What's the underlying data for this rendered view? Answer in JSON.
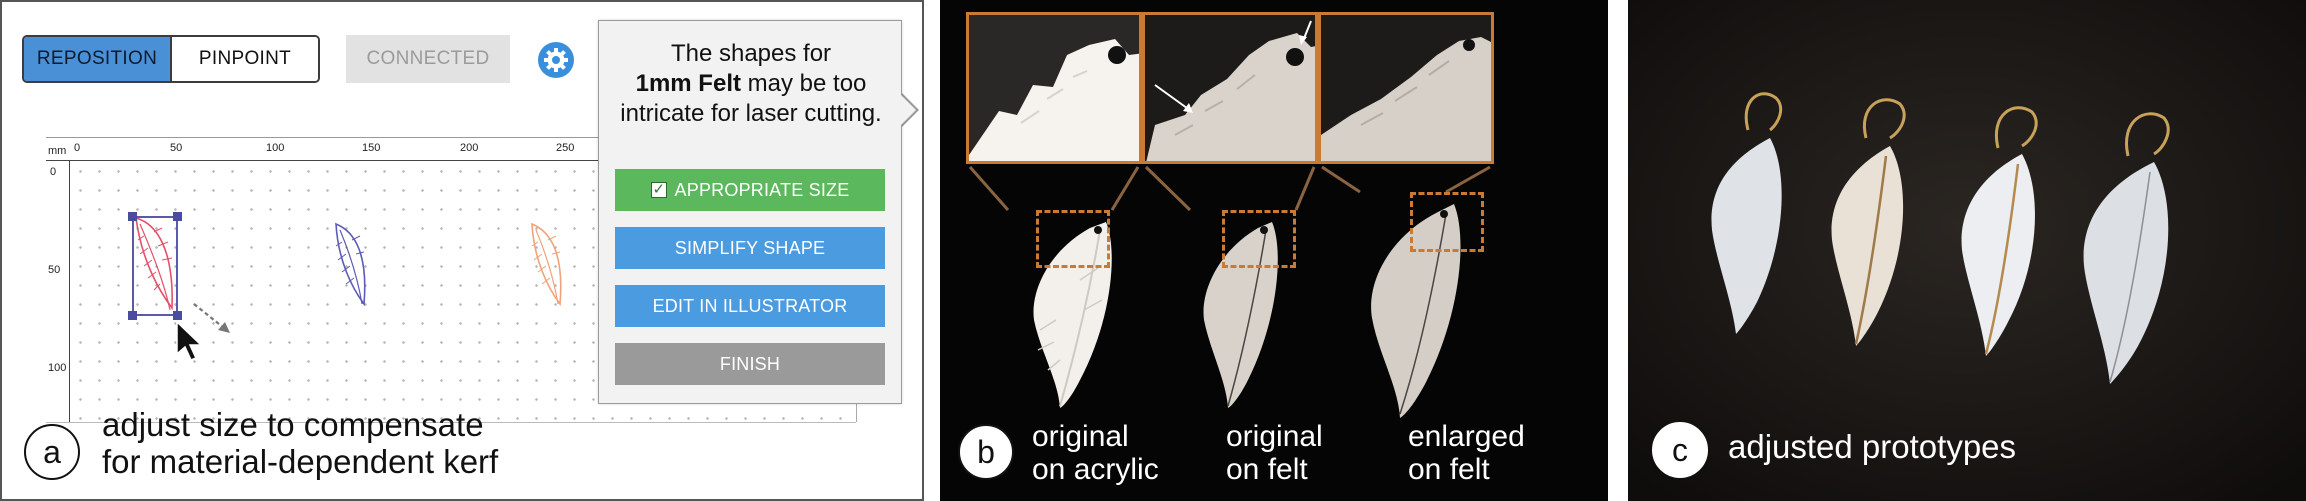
{
  "panel_a": {
    "toolbar": {
      "reposition_label": "REPOSITION",
      "pinpoint_label": "PINPOINT",
      "connected_label": "CONNECTED"
    },
    "ruler": {
      "unit": "mm",
      "top_ticks": [
        "0",
        "50",
        "100",
        "150",
        "200",
        "250"
      ],
      "left_ticks": [
        "0",
        "50",
        "100"
      ]
    },
    "popup": {
      "message_pre": "The shapes for",
      "message_bold": "1mm Felt",
      "message_post": "may be too intricate for laser cutting.",
      "btn_appropriate": "APPROPRIATE SIZE",
      "btn_simplify": "SIMPLIFY SHAPE",
      "btn_edit": "EDIT IN ILLUSTRATOR",
      "btn_finish": "FINISH"
    },
    "label": "a",
    "caption_line1": "adjust size to compensate",
    "caption_line2": "for material-dependent kerf"
  },
  "panel_b": {
    "label": "b",
    "captions": [
      {
        "line1": "original",
        "line2": "on acrylic"
      },
      {
        "line1": "original",
        "line2": "on felt"
      },
      {
        "line1": "enlarged",
        "line2": "on felt"
      }
    ]
  },
  "panel_c": {
    "label": "c",
    "caption": "adjusted prototypes"
  },
  "colors": {
    "accent_blue": "#4a90d6",
    "button_blue": "#4a9be0",
    "button_green": "#5cb85c",
    "button_gray": "#9a9a9a",
    "highlight_orange": "#c97b35"
  }
}
